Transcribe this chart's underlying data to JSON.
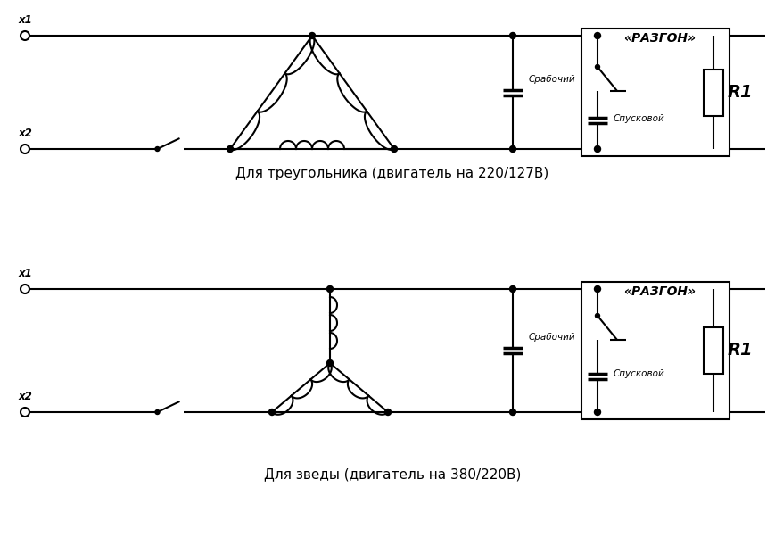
{
  "bg_color": "#ffffff",
  "line_color": "#000000",
  "title1": "Для треугольника (двигатель на 220/127В)",
  "title2": "Для зведы (двигатель на 380/220В)",
  "label_razgon": "«РАЗГОН»",
  "label_rabochiy": "Срабочий",
  "label_spuskovoy": "Спусковой",
  "label_R1": "R1",
  "label_x1": "x1",
  "label_x2": "x2",
  "figsize": [
    8.79,
    6.02
  ],
  "dpi": 100
}
